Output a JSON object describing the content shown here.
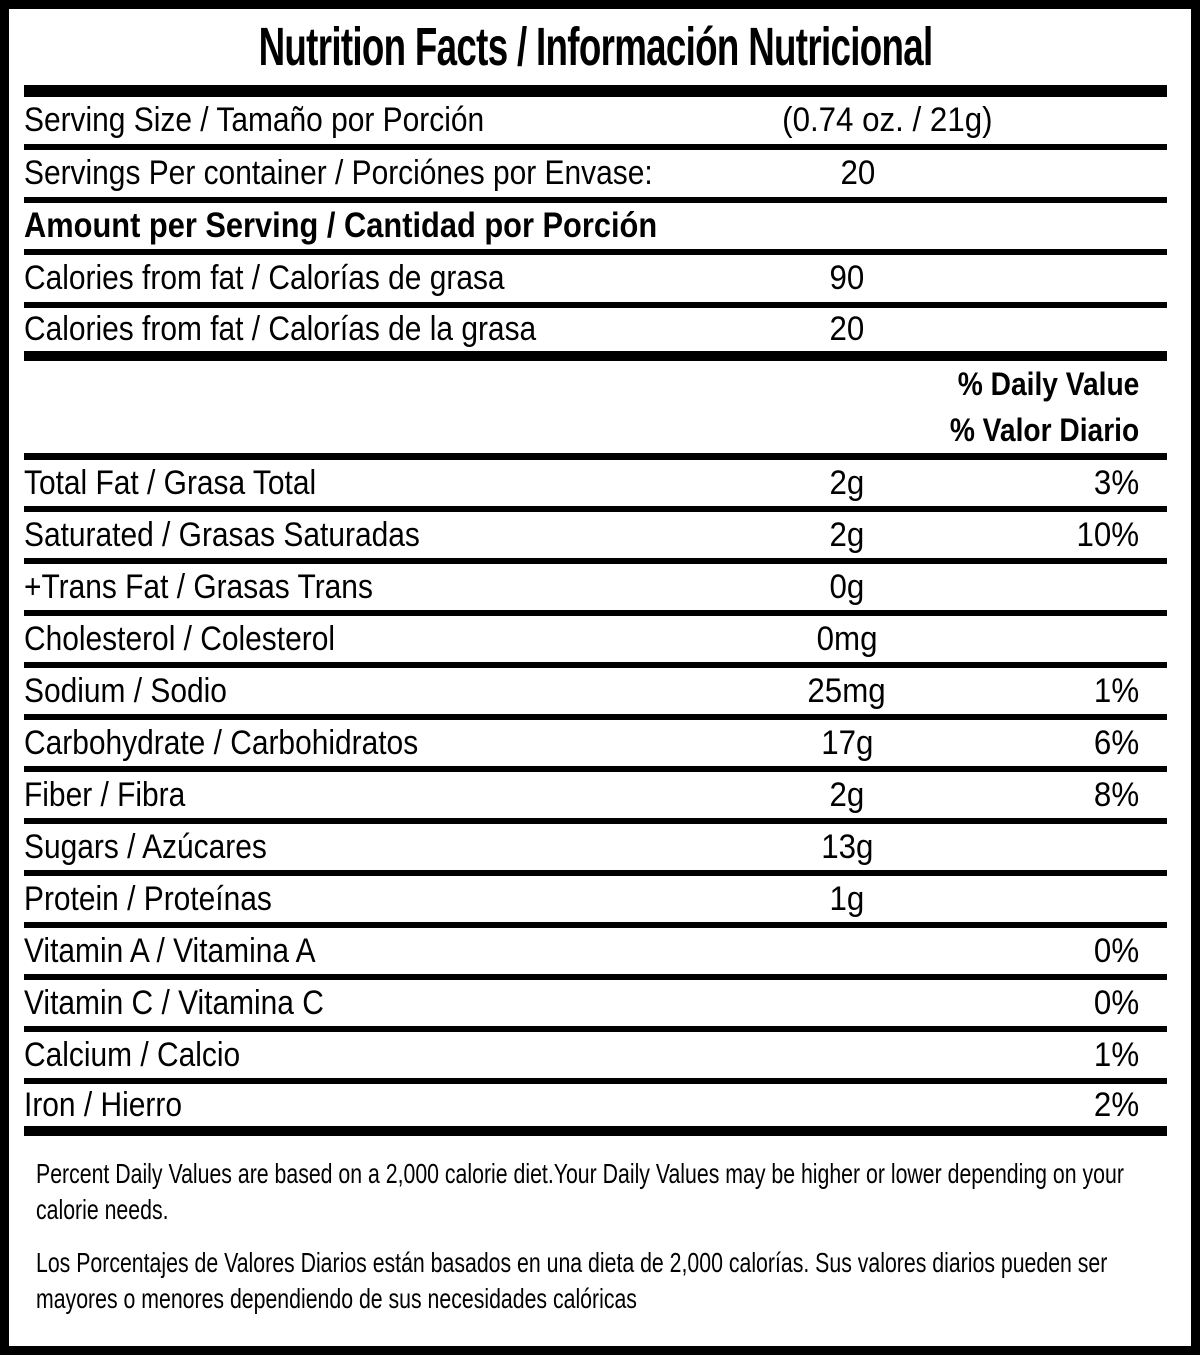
{
  "title": "Nutrition Facts / Información Nutricional",
  "colors": {
    "ink": "#000000",
    "background": "#ffffff"
  },
  "serving": {
    "size_label": "Serving Size / Tamaño por Porción",
    "size_value": "(0.74 oz. / 21g)",
    "per_container_label": "Servings Per container / Porciónes por Envase:",
    "per_container_value": "20"
  },
  "amount_header": "Amount per Serving / Cantidad por Porción",
  "calories_rows": [
    {
      "label": "Calories from fat / Calorías de grasa",
      "value": "90"
    },
    {
      "label": "Calories from fat / Calorías de la grasa",
      "value": "20"
    }
  ],
  "daily_value_header_en": "% Daily Value",
  "daily_value_header_es": "% Valor Diario",
  "nutrients": [
    {
      "label": "Total Fat / Grasa Total",
      "value": "2g",
      "dv": "3%"
    },
    {
      "label": "Saturated / Grasas Saturadas",
      "value": "2g",
      "dv": "10%"
    },
    {
      "label": "+Trans Fat / Grasas Trans",
      "value": "0g",
      "dv": ""
    },
    {
      "label": "Cholesterol / Colesterol",
      "value": "0mg",
      "dv": ""
    },
    {
      "label": "Sodium / Sodio",
      "value": "25mg",
      "dv": "1%"
    },
    {
      "label": "Carbohydrate / Carbohidratos",
      "value": "17g",
      "dv": "6%"
    },
    {
      "label": "Fiber / Fibra",
      "value": "2g",
      "dv": "8%"
    },
    {
      "label": "Sugars / Azúcares",
      "value": "13g",
      "dv": ""
    },
    {
      "label": "Protein / Proteínas",
      "value": "1g",
      "dv": ""
    },
    {
      "label": "Vitamin A / Vitamina A",
      "value": "",
      "dv": "0%"
    },
    {
      "label": "Vitamin C / Vitamina C",
      "value": "",
      "dv": "0%"
    },
    {
      "label": "Calcium / Calcio",
      "value": "",
      "dv": "1%"
    },
    {
      "label": "Iron / Hierro",
      "value": "",
      "dv": "2%"
    }
  ],
  "footnotes": {
    "en": "Percent Daily Values are based on a 2,000 calorie diet.Your Daily Values may be higher or lower depending on your calorie needs.",
    "es": "Los Porcentajes de Valores Diarios están basados en una dieta de 2,000 calorías. Sus valores diarios pueden ser mayores o menores dependiendo de sus necesidades calóricas"
  }
}
